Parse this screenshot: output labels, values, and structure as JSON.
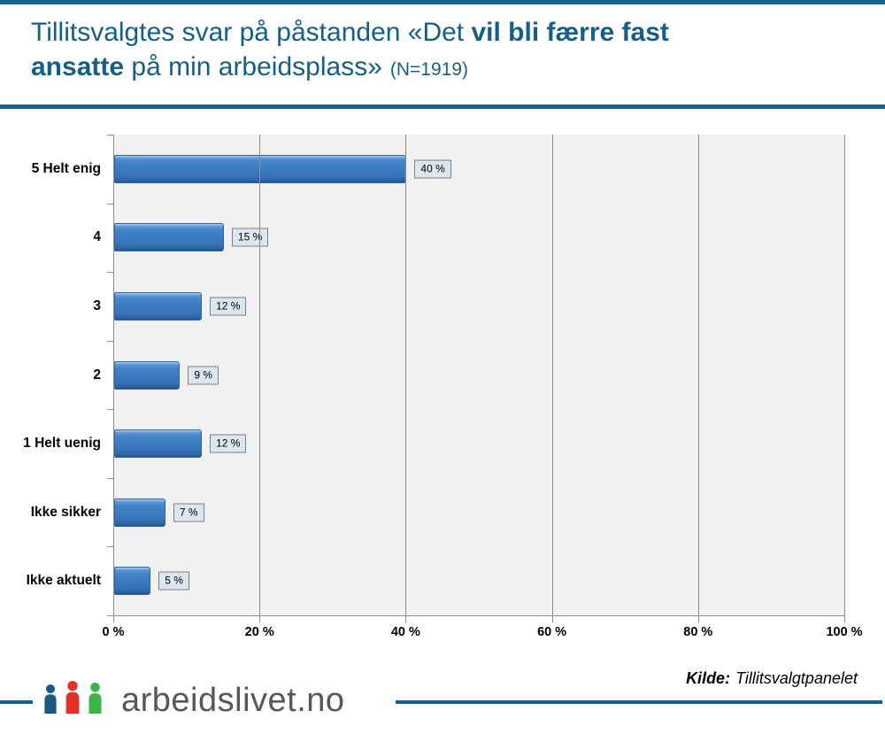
{
  "header": {
    "title_line1_normal": "Tillitsvalgtes svar på påstanden «Det ",
    "title_line1_bold": "vil bli færre fast",
    "title_line2_bold": "ansatte",
    "title_line2_normal": " på min arbeidsplass»",
    "sample_size": "(N=1919)",
    "title_color": "#155e86",
    "accent_color": "#14628c"
  },
  "chart_data": {
    "type": "bar",
    "orientation": "horizontal",
    "title": "Tillitsvalgtes svar på påstanden «Det vil bli færre fast ansatte på min arbeidsplass» (N=1919)",
    "categories": [
      "5 Helt enig",
      "4",
      "3",
      "2",
      "1 Helt uenig",
      "Ikke sikker",
      "Ikke aktuelt"
    ],
    "values": [
      40,
      15,
      12,
      9,
      12,
      7,
      5
    ],
    "value_labels": [
      "40 %",
      "15 %",
      "12 %",
      "9 %",
      "12 %",
      "7 %",
      "5 %"
    ],
    "x_tick_labels": [
      "0 %",
      "20 %",
      "40 %",
      "60 %",
      "80 %",
      "100 %"
    ],
    "xlim": [
      0,
      100
    ],
    "grid": true,
    "legend_position": "none",
    "bar_color": "#3d7cc3",
    "plot_background": "#f1f1f1",
    "gridline_color": "#8c8c8c",
    "value_box_background": "#dce6f1"
  },
  "footer": {
    "source_label": "Kilde:",
    "source_value": "Tillitsvalgtpanelet",
    "logo_text": "arbeidslivet.no",
    "logo_person_colors": [
      "#1b5a80",
      "#e53228",
      "#3cb44a"
    ],
    "accent_color": "#14628c"
  }
}
